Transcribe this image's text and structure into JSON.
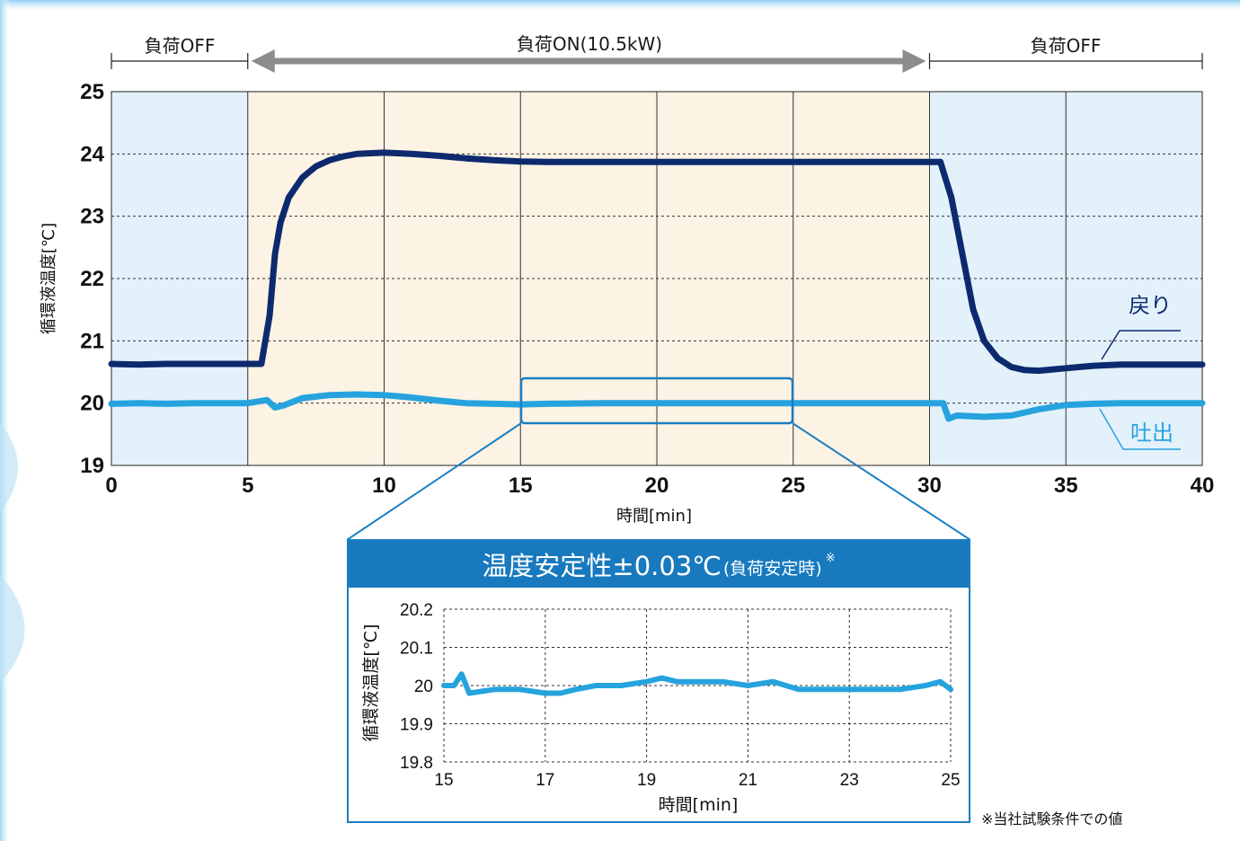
{
  "colors": {
    "return_line": "#0d2a6e",
    "discharge_line": "#26a3de",
    "load_off_bg": "#e3f1fb",
    "load_on_bg": "#fdf3e4",
    "zoom_header": "#1879be",
    "arrow": "#8c8c8c"
  },
  "regions": [
    {
      "label": "負荷OFF",
      "x_start": 0,
      "x_end": 5,
      "state": "off"
    },
    {
      "label": "負荷ON(10.5kW)",
      "x_start": 5,
      "x_end": 30,
      "state": "on"
    },
    {
      "label": "負荷OFF",
      "x_start": 30,
      "x_end": 40,
      "state": "off"
    }
  ],
  "chart_data": [
    {
      "type": "line",
      "ylabel": "循環液温度[℃]",
      "xlabel": "時間[min]",
      "xlim": [
        0,
        40
      ],
      "ylim": [
        19,
        25
      ],
      "x_ticks": [
        0,
        5,
        10,
        15,
        20,
        25,
        30,
        35,
        40
      ],
      "y_ticks": [
        19,
        20,
        21,
        22,
        23,
        24,
        25
      ],
      "grid": true,
      "series": [
        {
          "name": "戻り",
          "x": [
            0,
            1,
            2,
            3,
            4,
            5,
            5.5,
            5.8,
            6,
            6.2,
            6.5,
            7,
            7.5,
            8,
            8.5,
            9,
            10,
            11,
            12,
            13,
            14,
            15,
            16,
            18,
            20,
            22,
            24,
            26,
            28,
            29,
            30,
            30.4,
            30.8,
            31.2,
            31.6,
            32,
            32.5,
            33,
            33.5,
            34,
            35,
            36,
            37,
            38,
            39,
            40
          ],
          "values": [
            20.63,
            20.62,
            20.63,
            20.63,
            20.63,
            20.63,
            20.63,
            21.4,
            22.4,
            22.9,
            23.3,
            23.62,
            23.8,
            23.9,
            23.96,
            24.0,
            24.02,
            24.0,
            23.97,
            23.93,
            23.9,
            23.88,
            23.87,
            23.87,
            23.87,
            23.87,
            23.87,
            23.87,
            23.87,
            23.87,
            23.87,
            23.87,
            23.3,
            22.4,
            21.5,
            21.0,
            20.72,
            20.58,
            20.53,
            20.52,
            20.56,
            20.6,
            20.62,
            20.62,
            20.62,
            20.62
          ]
        },
        {
          "name": "吐出",
          "x": [
            0,
            1,
            2,
            3,
            4,
            5,
            5.7,
            6,
            6.3,
            7,
            8,
            9,
            10,
            11,
            12,
            13,
            14,
            15,
            16,
            18,
            20,
            22,
            24,
            26,
            28,
            30,
            30.5,
            30.7,
            31,
            32,
            33,
            34,
            35,
            36,
            37,
            38,
            39,
            40
          ],
          "values": [
            19.99,
            20.0,
            19.99,
            20.0,
            20.0,
            20.0,
            20.05,
            19.93,
            19.96,
            20.08,
            20.13,
            20.14,
            20.13,
            20.09,
            20.04,
            20.0,
            19.99,
            19.98,
            19.99,
            20.0,
            20.0,
            20.0,
            20.0,
            20.0,
            20.0,
            20.0,
            20.0,
            19.75,
            19.8,
            19.78,
            19.8,
            19.9,
            19.97,
            19.99,
            20.0,
            20.0,
            20.0,
            20.0
          ]
        }
      ]
    },
    {
      "type": "line",
      "title": "温度安定性±0.03℃",
      "title_suffix": "(負荷安定時)",
      "title_mark": "※",
      "ylabel": "循環液温度[℃]",
      "xlabel": "時間[min]",
      "xlim": [
        15,
        25
      ],
      "ylim": [
        19.8,
        20.2
      ],
      "x_ticks": [
        15,
        17,
        19,
        21,
        23,
        25
      ],
      "y_ticks": [
        19.8,
        19.9,
        20,
        20.1,
        20.2
      ],
      "grid": true,
      "series": [
        {
          "name": "吐出",
          "x": [
            15,
            15.2,
            15.35,
            15.5,
            16,
            16.5,
            17,
            17.3,
            17.6,
            18,
            18.5,
            19,
            19.3,
            19.6,
            20,
            20.5,
            21,
            21.5,
            22,
            22.5,
            23,
            23.5,
            24,
            24.5,
            24.8,
            25
          ],
          "values": [
            20.0,
            20.0,
            20.03,
            19.98,
            19.99,
            19.99,
            19.98,
            19.98,
            19.99,
            20.0,
            20.0,
            20.01,
            20.02,
            20.01,
            20.01,
            20.01,
            20.0,
            20.01,
            19.99,
            19.99,
            19.99,
            19.99,
            19.99,
            20.0,
            20.01,
            19.99
          ]
        }
      ]
    }
  ],
  "footnote": "※当社試験条件での値"
}
